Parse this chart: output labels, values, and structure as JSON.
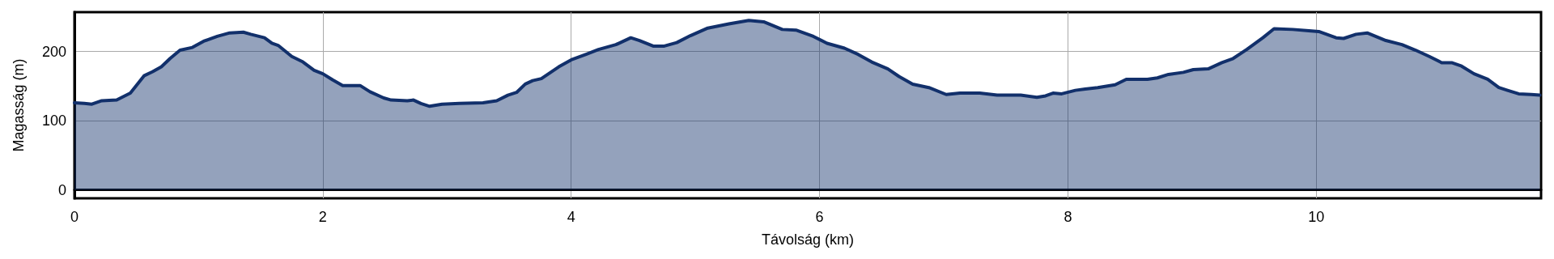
{
  "chart_data": {
    "type": "area",
    "xlabel": "Távolság (km)",
    "ylabel": "Magasság (m)",
    "xlim": [
      0,
      11.81
    ],
    "xticks": [
      0,
      2,
      4,
      6,
      8,
      10
    ],
    "ylim": [
      -12,
      257
    ],
    "yticks": [
      0,
      100,
      200
    ],
    "grid": true,
    "marker": "none",
    "line_style": "solid",
    "series": [
      {
        "color": "#12306b",
        "x": [
          0,
          0.08,
          0.14,
          0.22,
          0.34,
          0.45,
          0.56,
          0.63,
          0.7,
          0.77,
          0.85,
          0.95,
          1.04,
          1.15,
          1.25,
          1.36,
          1.42,
          1.53,
          1.59,
          1.64,
          1.75,
          1.84,
          1.93,
          2.0,
          2.08,
          2.16,
          2.3,
          2.38,
          2.49,
          2.55,
          2.68,
          2.73,
          2.79,
          2.86,
          2.96,
          3.1,
          3.29,
          3.4,
          3.49,
          3.56,
          3.63,
          3.69,
          3.76,
          3.9,
          4.0,
          4.12,
          4.22,
          4.36,
          4.48,
          4.55,
          4.66,
          4.75,
          4.85,
          4.96,
          5.1,
          5.27,
          5.43,
          5.55,
          5.7,
          5.81,
          5.95,
          6.06,
          6.2,
          6.31,
          6.42,
          6.55,
          6.64,
          6.75,
          6.88,
          7.02,
          7.13,
          7.29,
          7.43,
          7.62,
          7.75,
          7.82,
          7.88,
          7.95,
          8.06,
          8.14,
          8.24,
          8.38,
          8.47,
          8.64,
          8.72,
          8.81,
          8.93,
          9.01,
          9.13,
          9.24,
          9.33,
          9.44,
          9.57,
          9.66,
          9.81,
          9.94,
          10.02,
          10.16,
          10.22,
          10.32,
          10.41,
          10.56,
          10.69,
          10.8,
          10.91,
          11.01,
          11.09,
          11.17,
          11.27,
          11.38,
          11.47,
          11.54,
          11.63,
          11.73,
          11.8
        ],
        "values": [
          126,
          125,
          124,
          129,
          130,
          140,
          165,
          171,
          178,
          190,
          202,
          206,
          215,
          222,
          227,
          228,
          225,
          220,
          212,
          209,
          193,
          185,
          173,
          168,
          159,
          151,
          151,
          142,
          133,
          130,
          129,
          130,
          125,
          121,
          124,
          125,
          126,
          129,
          137,
          141,
          153,
          158,
          161,
          178,
          188,
          196,
          203,
          210,
          220,
          216,
          208,
          208,
          213,
          223,
          234,
          240,
          245,
          243,
          232,
          231,
          222,
          212,
          205,
          196,
          185,
          175,
          164,
          153,
          148,
          138,
          140,
          140,
          137,
          137,
          134,
          136,
          140,
          139,
          144,
          146,
          148,
          152,
          160,
          160,
          162,
          167,
          170,
          174,
          175,
          184,
          190,
          203,
          220,
          233,
          232,
          230,
          229,
          220,
          219,
          225,
          227,
          216,
          210,
          202,
          193,
          184,
          184,
          179,
          168,
          160,
          148,
          144,
          139,
          138,
          137
        ]
      }
    ]
  }
}
